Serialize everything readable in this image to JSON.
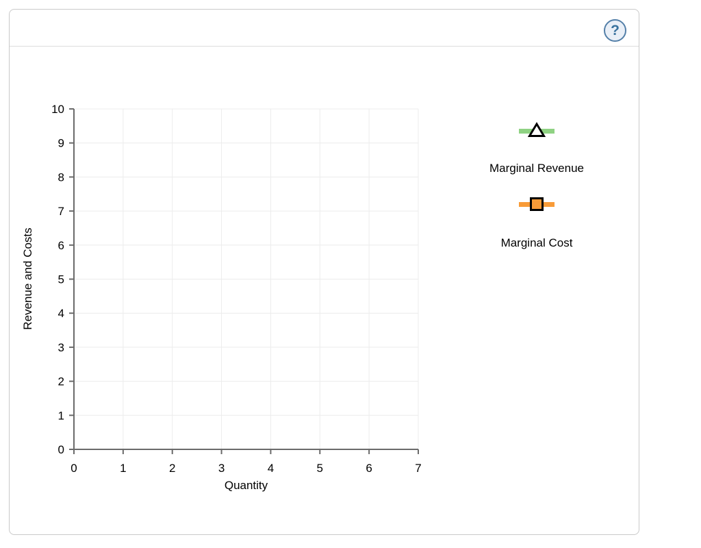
{
  "panel": {
    "background": "#ffffff",
    "border_color": "#c9c9c9",
    "divider_color": "#dddddd"
  },
  "help": {
    "glyph": "?",
    "border_color": "#537fa8",
    "fill_color": "#e9eff7",
    "text_color": "#39729e"
  },
  "chart_data": {
    "type": "line",
    "title": "",
    "xlabel": "Quantity",
    "ylabel": "Revenue and Costs",
    "xlim": [
      0,
      7
    ],
    "ylim": [
      0,
      10
    ],
    "xticks": [
      0,
      1,
      2,
      3,
      4,
      5,
      6,
      7
    ],
    "yticks": [
      0,
      1,
      2,
      3,
      4,
      5,
      6,
      7,
      8,
      9,
      10
    ],
    "grid": true,
    "grid_color": "#ececec",
    "axis_color": "#6a6a6a",
    "tick_label_color": "#000000",
    "legend_position": "right",
    "series": [
      {
        "name": "Marginal Revenue",
        "color": "#8fd283",
        "marker": "triangle-up",
        "marker_fill": "#ffffff",
        "marker_stroke": "#000000",
        "values": []
      },
      {
        "name": "Marginal Cost",
        "color": "#f89b38",
        "marker": "square",
        "marker_fill": "#f89b38",
        "marker_stroke": "#000000",
        "values": []
      }
    ]
  }
}
